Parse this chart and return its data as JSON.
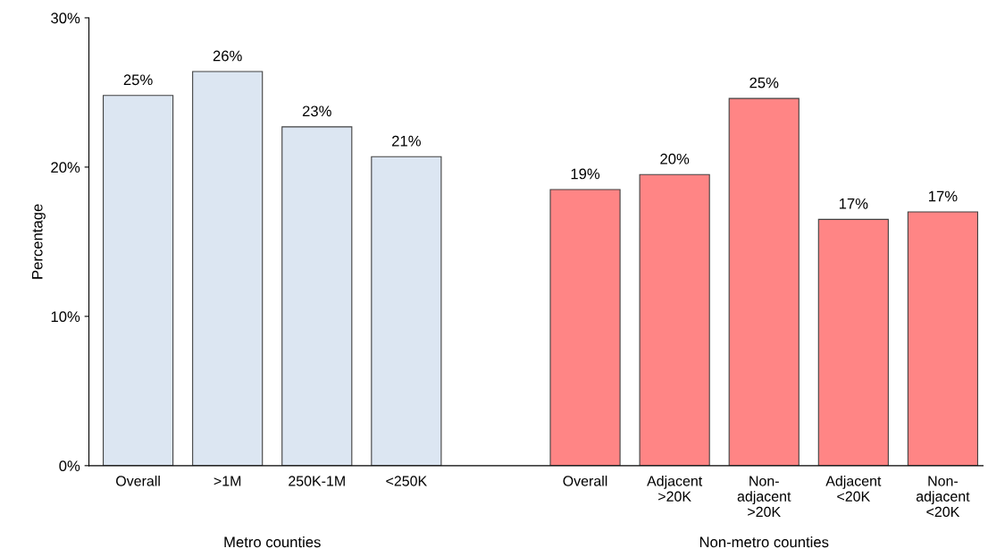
{
  "chart_data": {
    "type": "bar",
    "ylabel": "Percentage",
    "categories": [
      "Overall",
      ">1M",
      "250K-1M",
      "<250K",
      null,
      "Overall",
      "Adjacent\n>20K",
      "Non-\nadjacent\n>20K",
      "Adjacent\n<20K",
      "Non-\nadjacent\n<20K"
    ],
    "values": [
      24.8,
      26.4,
      22.7,
      20.7,
      null,
      18.5,
      19.5,
      24.6,
      16.5,
      17.0
    ],
    "value_labels": [
      "25%",
      "26%",
      "23%",
      "21%",
      null,
      "19%",
      "20%",
      "25%",
      "17%",
      "17%"
    ],
    "colors": [
      "#dce6f2",
      "#dce6f2",
      "#dce6f2",
      "#dce6f2",
      null,
      "#ff8585",
      "#ff8585",
      "#ff8585",
      "#ff8585",
      "#ff8585"
    ],
    "ylim": [
      0,
      30
    ],
    "yticks": [
      {
        "value": 0,
        "label": "0%"
      },
      {
        "value": 10,
        "label": "10%"
      },
      {
        "value": 20,
        "label": "20%"
      },
      {
        "value": 30,
        "label": "30%"
      }
    ],
    "grid": false,
    "legend": false,
    "annotations": [
      "Metro counties",
      "Non-metro counties"
    ]
  }
}
